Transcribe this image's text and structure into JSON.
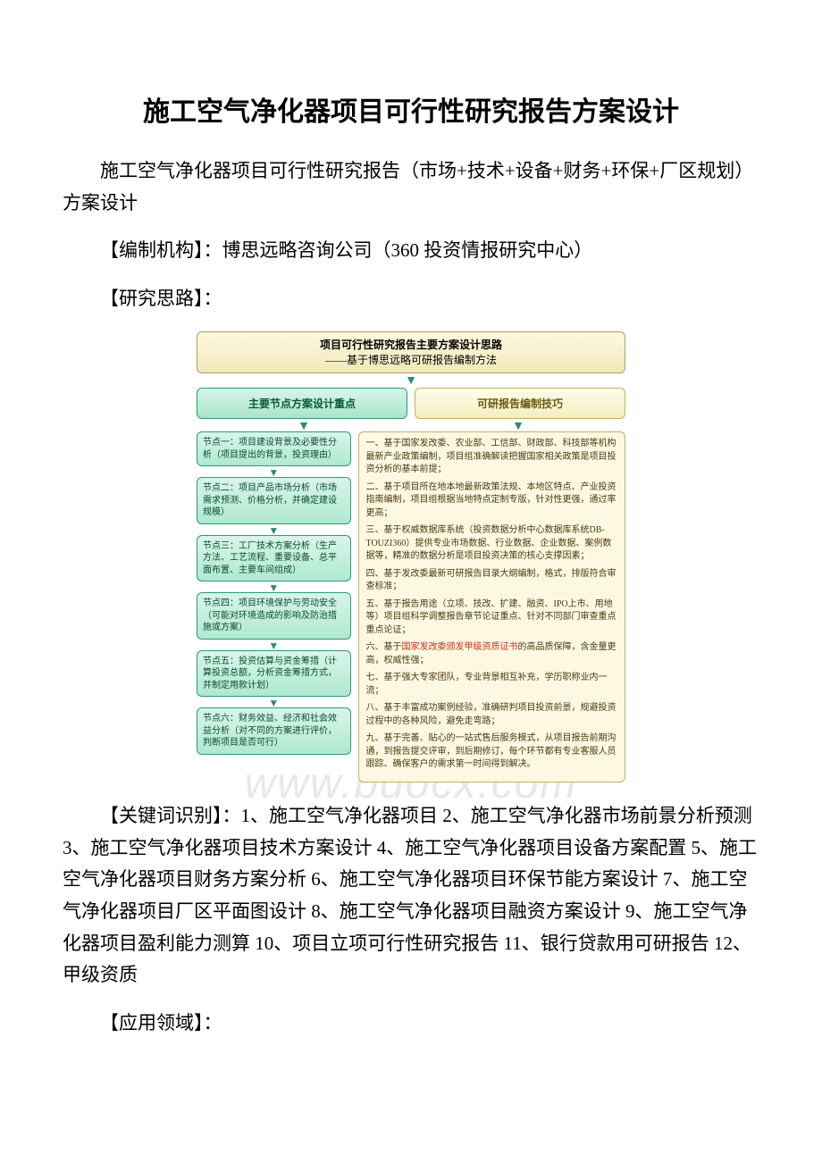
{
  "title": "施工空气净化器项目可行性研究报告方案设计",
  "para1": "施工空气净化器项目可行性研究报告（市场+技术+设备+财务+环保+厂区规划）方案设计",
  "para2": "【编制机构】：博思远略咨询公司（360 投资情报研究中心）",
  "para3": "【研究思路】：",
  "diagram": {
    "header_line1": "项目可行性研究报告主要方案设计思路",
    "header_line2": "——基于博思远略可研报告编制方法",
    "left_title": "主要节点方案设计重点",
    "right_title": "可研报告编制技巧",
    "nodes": [
      "节点一：项目建设背景及必要性分析（项目提出的背景，投资理由）",
      "节点二：项目产品市场分析（市场需求预测、价格分析，并确定建设规模）",
      "节点三：工厂技术方案分析（生产方法、工艺流程、重要设备、总平面布置、主要车间组成）",
      "节点四：项目环境保护与劳动安全（可能对环境造成的影响及防治措施或方案）",
      "节点五：投资估算与资金筹措（计算投资总额，分析资金筹措方式，并制定用款计划）",
      "节点六：财务效益、经济和社会效益分析（对不同的方案进行评价，判断项目是否可行）"
    ],
    "right_items": [
      "一、基于国家发改委、农业部、工信部、财政部、科技部等机构最新产业政策编制，项目组准确解读把握国家相关政策是项目投资分析的基本前提；",
      "二、基于项目所在地本地最新政策法规、本地区特点、产业投资指南编制，项目组根据当地特点定制专版，针对性更强，通过率更高；",
      "三、基于权威数据库系统（投资数据分析中心数据库系统DB-TOUZI360）提供专业市场数据、行业数据、企业数据、案例数据等，精准的数据分析是项目投资决策的核心支撑因素；",
      "四、基于发改委最新可研报告目录大纲编制，格式，排版符合审查标准；",
      "五、基于报告用途（立项、技改、扩建、融资、IPO上市、用地等）项目组科学调整报告章节论证重点、针对不同部门审查重点重点论证；",
      "六、基于<span class=\"red\">国家发改委颁发甲级资质证书</span>的高品质保障，含金量更高，权威性强；",
      "七、基于强大专家团队，专业背景相互补充，学历职称业内一流；",
      "八、基于丰富成功案例经验，准确研判项目投资前景，规避投资过程中的各种风险，避免走弯路；",
      "九、基于完善、贴心的一站式售后服务模式，从项目报告前期沟通，到报告提交评审，到后期修订，每个环节都有专业客服人员跟踪、确保客户的需求第一时间得到解决。"
    ]
  },
  "para4": "【关键词识别】：1、施工空气净化器项目 2、施工空气净化器市场前景分析预测 3、施工空气净化器项目技术方案设计 4、施工空气净化器项目设备方案配置 5、施工空气净化器项目财务方案分析 6、施工空气净化器项目环保节能方案设计 7、施工空气净化器项目厂区平面图设计 8、施工空气净化器项目融资方案设计 9、施工空气净化器项目盈利能力测算 10、项目立项可行性研究报告 11、银行贷款用可研报告 12、甲级资质",
  "para5": "【应用领域】：",
  "watermark": "www.bdocx.com"
}
